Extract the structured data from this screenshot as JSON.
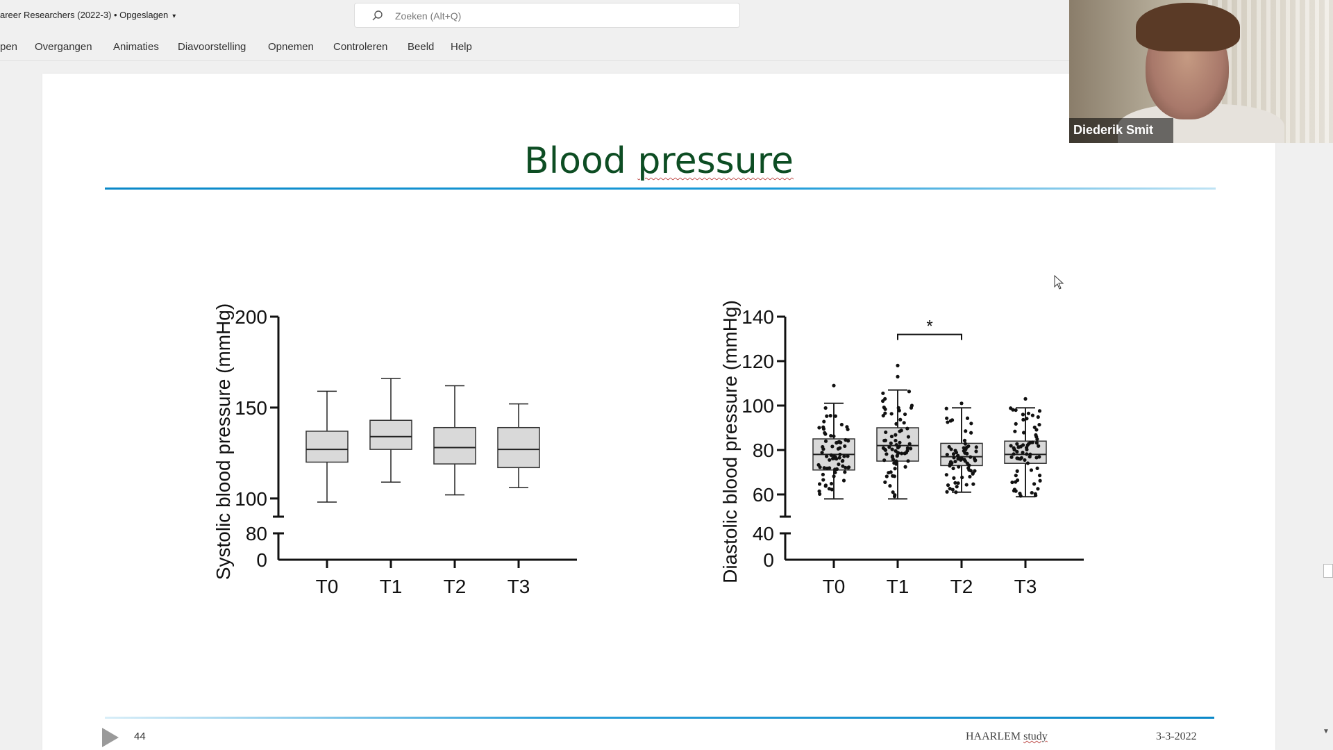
{
  "window": {
    "doc_title": "areer Researchers (2022-3) • Opgeslagen",
    "search_placeholder": "Zoeken (Alt+Q)"
  },
  "ribbon": {
    "tabs": [
      "pen",
      "Overgangen",
      "Animaties",
      "Diavoorstelling",
      "Opnemen",
      "Controleren",
      "Beeld",
      "Help"
    ]
  },
  "slide": {
    "title_part1": "Blood ",
    "title_part2": "pressure",
    "footer_number": "44",
    "footer_study_part1": "HAARLEM ",
    "footer_study_part2": "study",
    "footer_date": "3-3-2022"
  },
  "video": {
    "participant_name": "Diederik Smit"
  },
  "colors": {
    "title_green": "#0d4d23",
    "rule_blue": "#0a88c8",
    "box_fill": "#d9d9d9"
  },
  "chart_data": [
    {
      "type": "box",
      "ylabel": "Systolic blood pressure (mmHg)",
      "xlabel": "",
      "categories": [
        "T0",
        "T1",
        "T2",
        "T3"
      ],
      "y_ticks_upper": [
        100,
        150,
        200
      ],
      "y_ticks_lower": [
        0,
        80
      ],
      "axis_break": true,
      "ylim_upper": [
        90,
        200
      ],
      "boxes": [
        {
          "min": 98,
          "q1": 120,
          "median": 127,
          "q3": 137,
          "max": 159
        },
        {
          "min": 109,
          "q1": 127,
          "median": 134,
          "q3": 143,
          "max": 166
        },
        {
          "min": 102,
          "q1": 119,
          "median": 128,
          "q3": 139,
          "max": 162
        },
        {
          "min": 106,
          "q1": 117,
          "median": 127,
          "q3": 139,
          "max": 152
        }
      ]
    },
    {
      "type": "box",
      "ylabel": "Diastolic blood pressure (mmHg)",
      "xlabel": "",
      "categories": [
        "T0",
        "T1",
        "T2",
        "T3"
      ],
      "y_ticks_upper": [
        60,
        80,
        100,
        120,
        140
      ],
      "y_ticks_lower": [
        0,
        40
      ],
      "axis_break": true,
      "ylim_upper": [
        50,
        140
      ],
      "significance": {
        "from": "T1",
        "to": "T2",
        "label": "*"
      },
      "boxes": [
        {
          "min": 58,
          "q1": 71,
          "median": 78,
          "q3": 85,
          "max": 101
        },
        {
          "min": 58,
          "q1": 75,
          "median": 82,
          "q3": 90,
          "max": 107
        },
        {
          "min": 61,
          "q1": 73,
          "median": 77,
          "q3": 83,
          "max": 99
        },
        {
          "min": 59,
          "q1": 74,
          "median": 78,
          "q3": 84,
          "max": 99
        }
      ],
      "outliers": [
        {
          "category": "T0",
          "value": 109
        },
        {
          "category": "T1",
          "value": 118
        },
        {
          "category": "T1",
          "value": 113
        },
        {
          "category": "T2",
          "value": 101
        },
        {
          "category": "T3",
          "value": 103
        }
      ]
    }
  ]
}
